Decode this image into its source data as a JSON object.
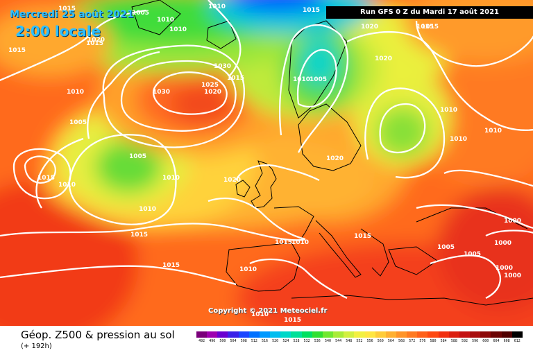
{
  "header": {
    "date_label": "Mercredi 25 août 2021",
    "time_label": "2:00 locale",
    "run_label": "Run GFS 0 Z du Mardi 17 août 2021"
  },
  "map": {
    "copyright": "Copyright © 2021 Meteociel.fr",
    "isobar_labels": [
      "1015",
      "1015",
      "1005",
      "1010",
      "1010",
      "1010",
      "1005",
      "1015",
      "1020",
      "1030",
      "1025",
      "1020",
      "1030",
      "1015",
      "1010",
      "1010",
      "1005",
      "1005",
      "1010",
      "1010",
      "1020",
      "1020",
      "1015",
      "1015",
      "1010",
      "1010",
      "1010",
      "1010",
      "1015",
      "1015",
      "1020",
      "1010",
      "1015",
      "1010",
      "1015",
      "1005",
      "1000",
      "1000",
      "1000",
      "1000",
      "1005",
      "1015",
      "1010",
      "1015",
      "1015",
      "1020"
    ]
  },
  "footer": {
    "title": "Géop. Z500 & pression au sol",
    "subtitle": "(+ 192h)"
  },
  "legend": {
    "values": [
      "492",
      "496",
      "500",
      "504",
      "508",
      "512",
      "516",
      "520",
      "524",
      "528",
      "532",
      "536",
      "540",
      "544",
      "548",
      "552",
      "556",
      "560",
      "564",
      "568",
      "572",
      "576",
      "580",
      "584",
      "588",
      "592",
      "596",
      "600",
      "604",
      "608",
      "612"
    ],
    "colors": [
      "#7a007a",
      "#9e00b0",
      "#6a00d0",
      "#3b22e8",
      "#1a46ff",
      "#0070ff",
      "#0098ff",
      "#00bdf0",
      "#00d8c8",
      "#00e098",
      "#00e060",
      "#30e030",
      "#70e830",
      "#a8ec38",
      "#d2f040",
      "#f2f040",
      "#ffe640",
      "#ffcc38",
      "#ffb030",
      "#ff9428",
      "#ff7a20",
      "#ff6018",
      "#ff4810",
      "#f23010",
      "#dc2010",
      "#c41010",
      "#a80c0c",
      "#8c0808",
      "#6c0404",
      "#500000",
      "#000000"
    ]
  }
}
